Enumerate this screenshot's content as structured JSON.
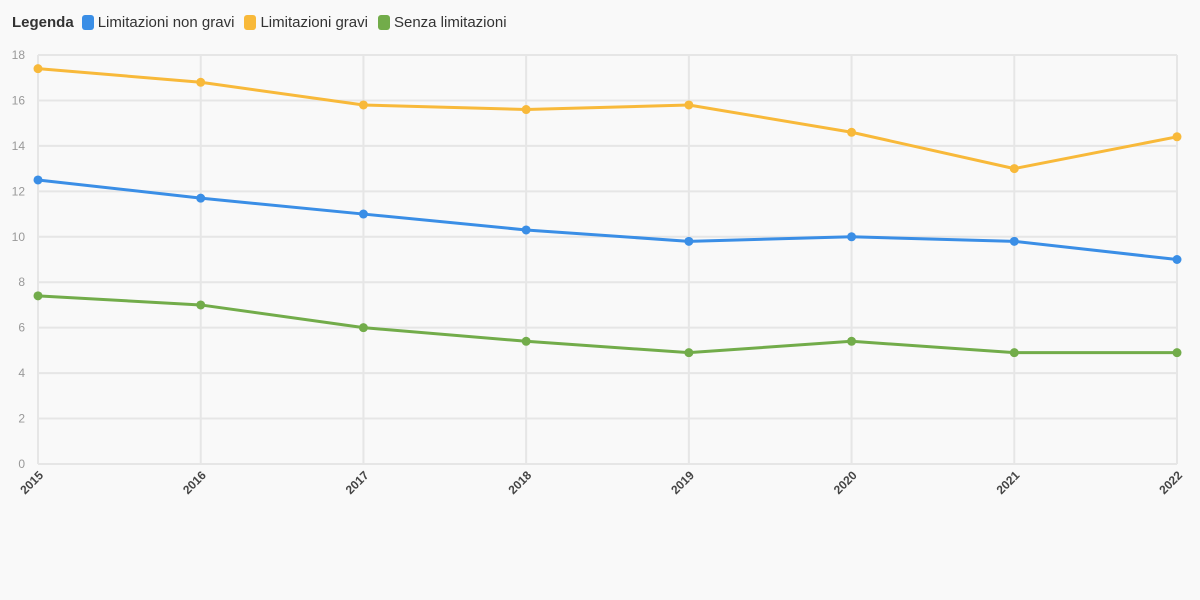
{
  "legend": {
    "title": "Legenda"
  },
  "chart_data": {
    "type": "line",
    "title": "",
    "xlabel": "",
    "ylabel": "",
    "x": [
      "2015",
      "2016",
      "2017",
      "2018",
      "2019",
      "2020",
      "2021",
      "2022"
    ],
    "ylim": [
      0,
      18
    ],
    "yticks": [
      "0",
      "2",
      "4",
      "6",
      "8",
      "10",
      "12",
      "14",
      "16",
      "18"
    ],
    "grid": true,
    "legend_position": "top-left",
    "series": [
      {
        "name": "Limitazioni non gravi",
        "color": "#3a8ee6",
        "values": [
          12.5,
          11.7,
          11.0,
          10.3,
          9.8,
          10.0,
          9.8,
          9.0
        ]
      },
      {
        "name": "Limitazioni gravi",
        "color": "#f8b93a",
        "values": [
          17.4,
          16.8,
          15.8,
          15.6,
          15.8,
          14.6,
          13.0,
          14.4
        ]
      },
      {
        "name": "Senza limitazioni",
        "color": "#72ac4a",
        "values": [
          7.4,
          7.0,
          6.0,
          5.4,
          4.9,
          5.4,
          4.9,
          4.9
        ]
      }
    ]
  }
}
